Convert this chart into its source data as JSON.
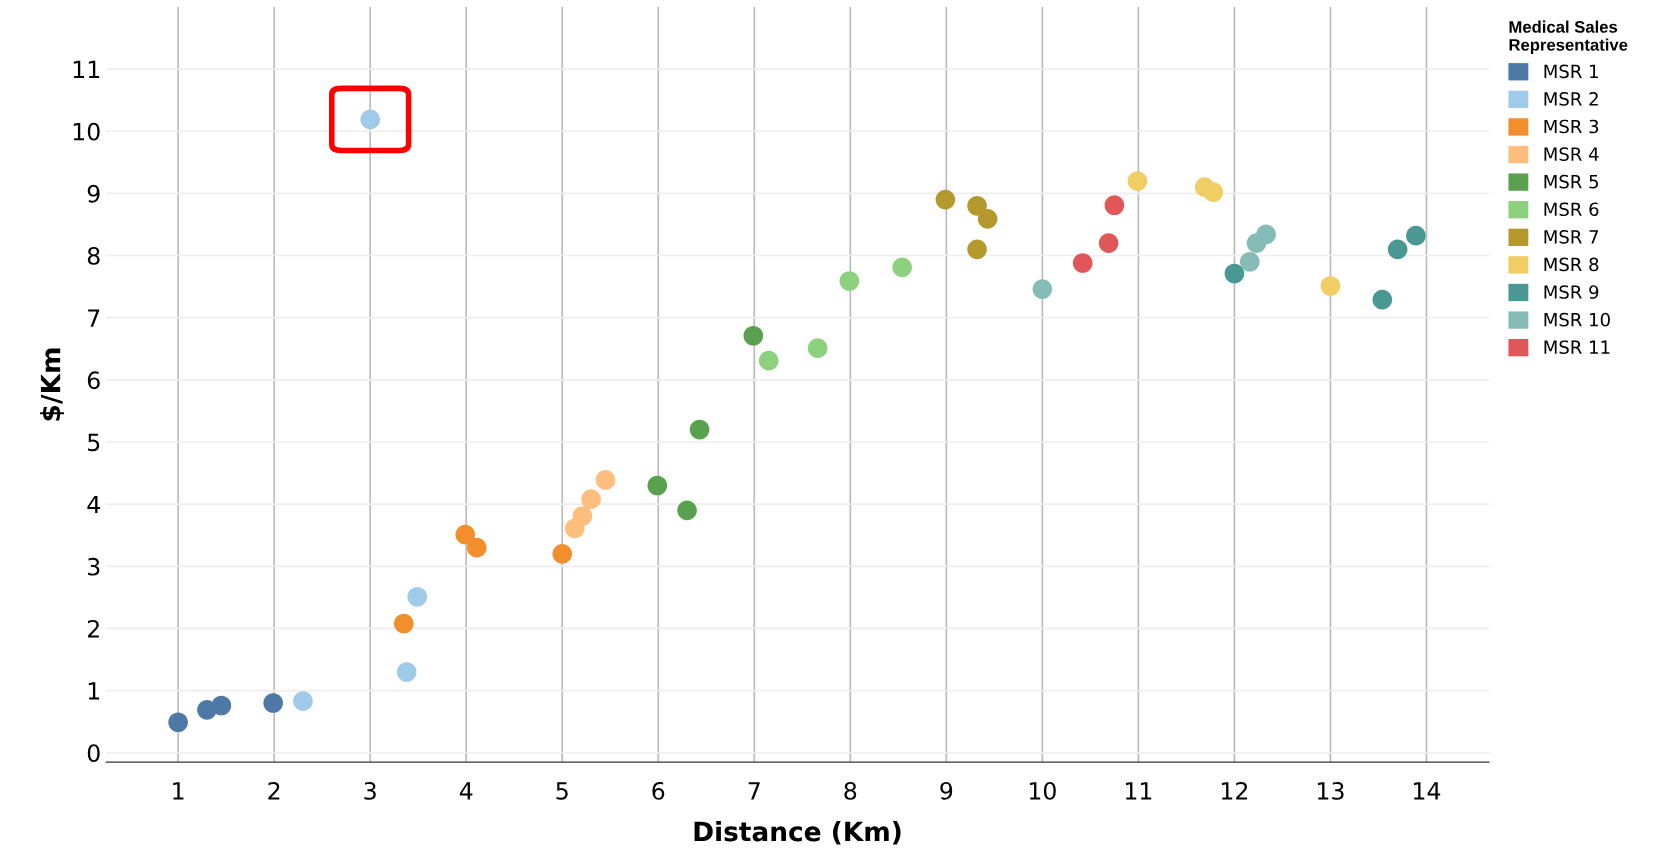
{
  "chart_data": {
    "type": "scatter",
    "xlabel": "Distance (Km)",
    "ylabel": "$/Km",
    "legend_title": "Medical Sales\nRepresentative",
    "xlim": [
      0.25,
      14.65
    ],
    "ylim": [
      -0.15,
      12
    ],
    "xticks": [
      1,
      2,
      3,
      4,
      5,
      6,
      7,
      8,
      9,
      10,
      11,
      12,
      13,
      14
    ],
    "yticks": [
      0,
      1,
      2,
      3,
      4,
      5,
      6,
      7,
      8,
      9,
      10,
      11
    ],
    "grid": true,
    "legend": "top right",
    "marker": "circle",
    "series": [
      {
        "name": "MSR 1",
        "color": "#4e79a7",
        "x": [
          1.0,
          1.3,
          1.45,
          1.99
        ],
        "values": [
          0.49,
          0.69,
          0.76,
          0.8
        ]
      },
      {
        "name": "MSR 2",
        "color": "#a0cbe8",
        "x": [
          2.3,
          3.0,
          3.49,
          3.38
        ],
        "values": [
          0.83,
          10.19,
          2.51,
          1.3
        ]
      },
      {
        "name": "MSR 3",
        "color": "#f28e2b",
        "x": [
          3.35,
          3.99,
          4.11,
          5.0
        ],
        "values": [
          2.08,
          3.51,
          3.3,
          3.2
        ]
      },
      {
        "name": "MSR 4",
        "color": "#ffbe7d",
        "x": [
          5.13,
          5.21,
          5.3,
          5.45
        ],
        "values": [
          3.61,
          3.81,
          4.08,
          4.39
        ]
      },
      {
        "name": "MSR 5",
        "color": "#59a14f",
        "x": [
          5.99,
          6.3,
          6.43,
          6.99
        ],
        "values": [
          4.3,
          3.9,
          5.2,
          6.71
        ]
      },
      {
        "name": "MSR 6",
        "color": "#8cd17d",
        "x": [
          7.15,
          7.66,
          7.99,
          8.54
        ],
        "values": [
          6.31,
          6.51,
          7.59,
          7.81
        ]
      },
      {
        "name": "MSR 7",
        "color": "#b6992d",
        "x": [
          8.99,
          9.32,
          9.43,
          9.32
        ],
        "values": [
          8.9,
          8.8,
          8.59,
          8.1
        ]
      },
      {
        "name": "MSR 8",
        "color": "#f1ce63",
        "x": [
          10.99,
          11.69,
          11.78,
          13.0
        ],
        "values": [
          9.2,
          9.1,
          9.02,
          7.51
        ]
      },
      {
        "name": "MSR 9",
        "color": "#499894",
        "x": [
          12.0,
          13.54,
          13.7,
          13.89
        ],
        "values": [
          7.71,
          7.29,
          8.1,
          8.32
        ]
      },
      {
        "name": "MSR 10",
        "color": "#86bcb6",
        "x": [
          10.0,
          12.16,
          12.23,
          12.33
        ],
        "values": [
          7.46,
          7.9,
          8.2,
          8.34
        ]
      },
      {
        "name": "MSR 11",
        "color": "#e15759",
        "x": [
          10.42,
          10.69,
          10.75
        ],
        "values": [
          7.88,
          8.2,
          8.81
        ]
      }
    ]
  }
}
